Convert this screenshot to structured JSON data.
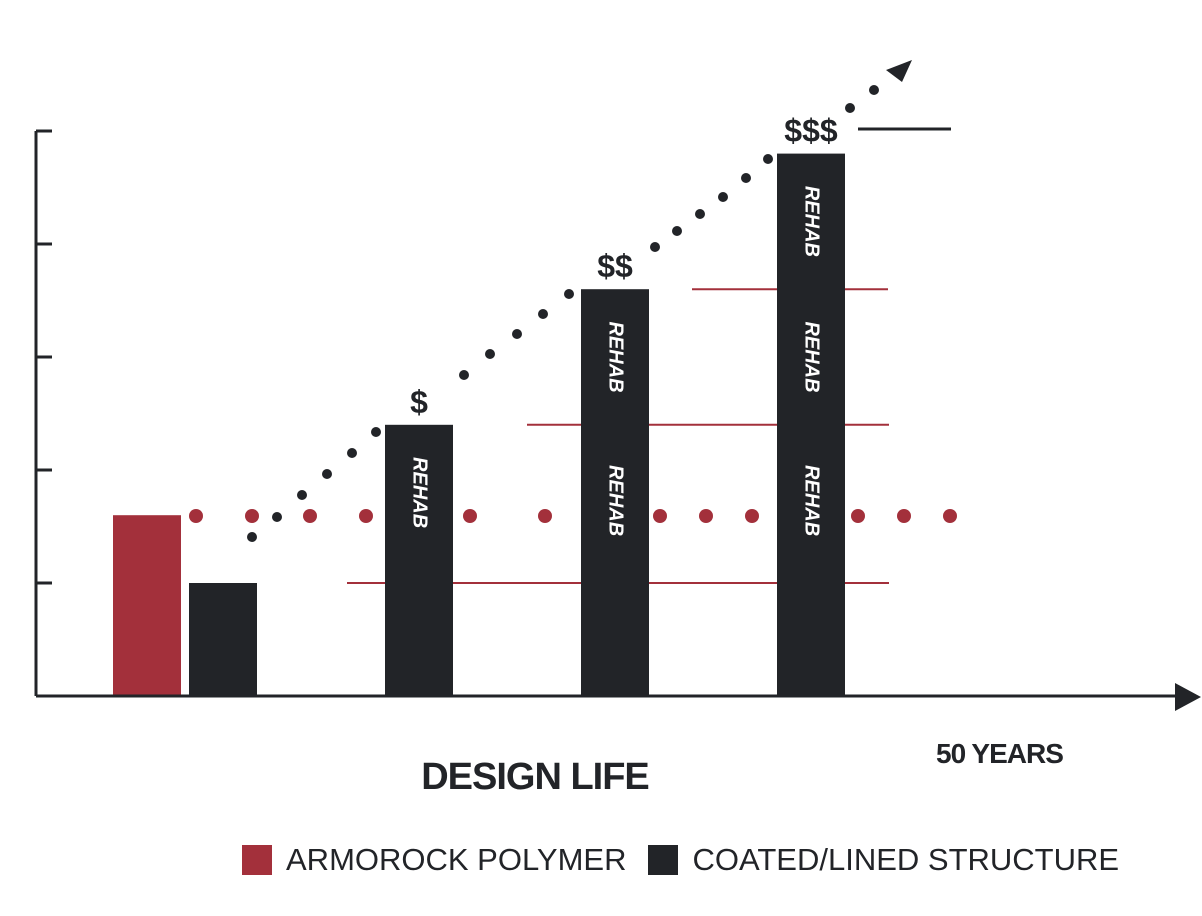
{
  "chart_data": {
    "type": "bar",
    "xlabel": "DESIGN LIFE",
    "x_end_label": "50 YEARS",
    "ylabel": "",
    "ylim": [
      0,
      5
    ],
    "y_ticks": [
      0,
      1,
      2,
      3,
      4,
      5
    ],
    "grid": false,
    "colors": {
      "armorock": "#a3303b",
      "coated": "#222428",
      "trend": "#222428"
    },
    "series": [
      {
        "name": "ARMOROCK POLYMER",
        "values": [
          1.6
        ]
      },
      {
        "name": "COATED/LINED STRUCTURE",
        "values": [
          1.0,
          2.4,
          3.6,
          4.8
        ]
      }
    ],
    "coated_bars": [
      {
        "value": 1.0,
        "segments": [],
        "cost_label": ""
      },
      {
        "value": 2.4,
        "segments": [
          "REHAB"
        ],
        "cost_label": "$"
      },
      {
        "value": 3.6,
        "segments": [
          "REHAB",
          "REHAB"
        ],
        "cost_label": "$$"
      },
      {
        "value": 4.8,
        "segments": [
          "REHAB",
          "REHAB",
          "REHAB"
        ],
        "cost_label": "$$$"
      }
    ],
    "armorock_level": 1.6,
    "rehab_lines": [
      1.0,
      2.4,
      3.6
    ]
  },
  "legend": [
    {
      "label": "ARMOROCK POLYMER",
      "color": "#a3303b"
    },
    {
      "label": "COATED/LINED STRUCTURE",
      "color": "#222428"
    }
  ]
}
